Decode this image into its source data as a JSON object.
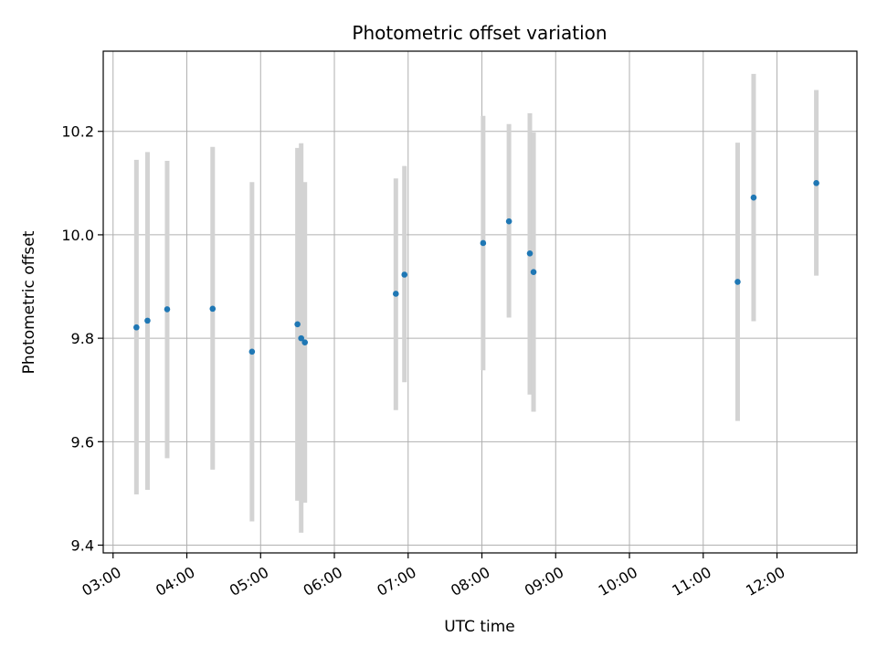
{
  "chart_data": {
    "type": "scatter",
    "title": "Photometric offset variation",
    "xlabel": "UTC time",
    "ylabel": "Photometric offset",
    "x_unit": "hours (UTC)",
    "xlim": [
      "02:52",
      "13:05"
    ],
    "ylim": [
      9.385,
      10.355
    ],
    "x_ticks": [
      "03:00",
      "04:00",
      "05:00",
      "06:00",
      "07:00",
      "08:00",
      "09:00",
      "10:00",
      "11:00",
      "12:00"
    ],
    "y_ticks": [
      "9.4",
      "9.6",
      "9.8",
      "10.0",
      "10.2"
    ],
    "grid": true,
    "marker_color": "#1f77b4",
    "errorbar_color": "#d3d3d3",
    "points": [
      {
        "time": "03:19",
        "y": 9.821,
        "low": 9.498,
        "high": 10.145
      },
      {
        "time": "03:28",
        "y": 9.834,
        "low": 9.507,
        "high": 10.16
      },
      {
        "time": "03:44",
        "y": 9.856,
        "low": 9.568,
        "high": 10.143
      },
      {
        "time": "04:21",
        "y": 9.857,
        "low": 9.546,
        "high": 10.17
      },
      {
        "time": "04:53",
        "y": 9.774,
        "low": 9.446,
        "high": 10.102
      },
      {
        "time": "05:30",
        "y": 9.827,
        "low": 9.486,
        "high": 10.168
      },
      {
        "time": "05:33",
        "y": 9.8,
        "low": 9.424,
        "high": 10.177
      },
      {
        "time": "05:36",
        "y": 9.792,
        "low": 9.482,
        "high": 10.102
      },
      {
        "time": "06:50",
        "y": 9.886,
        "low": 9.661,
        "high": 10.109
      },
      {
        "time": "06:57",
        "y": 9.923,
        "low": 9.715,
        "high": 10.133
      },
      {
        "time": "08:01",
        "y": 9.984,
        "low": 9.738,
        "high": 10.23
      },
      {
        "time": "08:22",
        "y": 10.026,
        "low": 9.84,
        "high": 10.214
      },
      {
        "time": "08:39",
        "y": 9.964,
        "low": 9.691,
        "high": 10.235
      },
      {
        "time": "08:42",
        "y": 9.928,
        "low": 9.658,
        "high": 10.198
      },
      {
        "time": "11:28",
        "y": 9.909,
        "low": 9.64,
        "high": 10.178
      },
      {
        "time": "11:41",
        "y": 10.072,
        "low": 9.833,
        "high": 10.311
      },
      {
        "time": "12:32",
        "y": 10.1,
        "low": 9.921,
        "high": 10.28
      }
    ]
  }
}
